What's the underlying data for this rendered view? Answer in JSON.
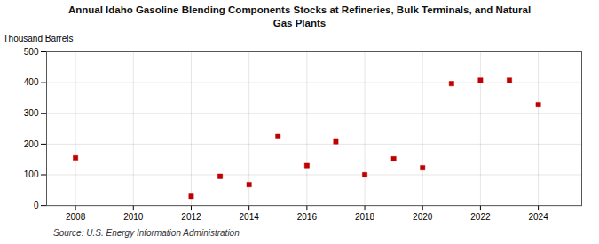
{
  "chart_data": {
    "type": "scatter",
    "title": "Annual Idaho Gasoline Blending Components Stocks at Refineries, Bulk Terminals, and Natural\nGas Plants",
    "ylabel": "Thousand Barrels",
    "source": "Source: U.S. Energy Information Administration",
    "x": [
      2008,
      2012,
      2013,
      2014,
      2015,
      2016,
      2017,
      2018,
      2019,
      2020,
      2021,
      2022,
      2023,
      2024
    ],
    "values": [
      155,
      30,
      95,
      68,
      225,
      130,
      208,
      100,
      152,
      123,
      397,
      408,
      408,
      328
    ],
    "color": "#c00000",
    "marker": "square",
    "xlim": [
      2007,
      2025.5
    ],
    "ylim": [
      0,
      500
    ],
    "xticks": [
      2008,
      2010,
      2012,
      2014,
      2016,
      2018,
      2020,
      2022,
      2024
    ],
    "yticks": [
      0,
      100,
      200,
      300,
      400,
      500
    ],
    "grid": true
  }
}
